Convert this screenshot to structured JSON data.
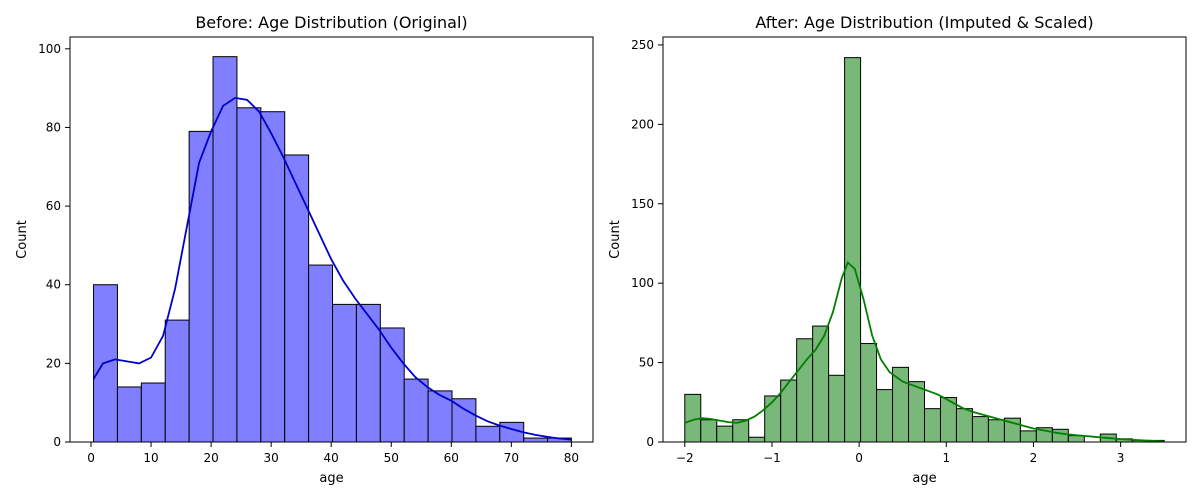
{
  "chart_data": [
    {
      "type": "histogram",
      "title": "Before: Age Distribution (Original)",
      "xlabel": "age",
      "ylabel": "Count",
      "xlim": [
        -3.5,
        83.6
      ],
      "ylim": [
        0,
        103
      ],
      "xticks": [
        0,
        10,
        20,
        30,
        40,
        50,
        60,
        70,
        80
      ],
      "yticks": [
        0,
        20,
        40,
        60,
        80,
        100
      ],
      "bar_color": "#7f7fff",
      "kde_color": "#0000cc",
      "bins": [
        {
          "x0": 0.42,
          "x1": 4.4,
          "count": 40
        },
        {
          "x0": 4.4,
          "x1": 8.38,
          "count": 14
        },
        {
          "x0": 8.38,
          "x1": 12.36,
          "count": 15
        },
        {
          "x0": 12.36,
          "x1": 16.34,
          "count": 31
        },
        {
          "x0": 16.34,
          "x1": 20.32,
          "count": 79
        },
        {
          "x0": 20.32,
          "x1": 24.3,
          "count": 98
        },
        {
          "x0": 24.3,
          "x1": 28.28,
          "count": 85
        },
        {
          "x0": 28.28,
          "x1": 32.26,
          "count": 84
        },
        {
          "x0": 32.26,
          "x1": 36.24,
          "count": 73
        },
        {
          "x0": 36.24,
          "x1": 40.22,
          "count": 45
        },
        {
          "x0": 40.22,
          "x1": 44.2,
          "count": 35
        },
        {
          "x0": 44.2,
          "x1": 48.18,
          "count": 35
        },
        {
          "x0": 48.18,
          "x1": 52.16,
          "count": 29
        },
        {
          "x0": 52.16,
          "x1": 56.14,
          "count": 16
        },
        {
          "x0": 56.14,
          "x1": 60.12,
          "count": 13
        },
        {
          "x0": 60.12,
          "x1": 64.1,
          "count": 11
        },
        {
          "x0": 64.1,
          "x1": 68.08,
          "count": 4
        },
        {
          "x0": 68.08,
          "x1": 72.06,
          "count": 5
        },
        {
          "x0": 72.06,
          "x1": 76.04,
          "count": 1
        },
        {
          "x0": 76.04,
          "x1": 80.0,
          "count": 1
        }
      ],
      "kde": [
        [
          0.4,
          16
        ],
        [
          2,
          20
        ],
        [
          4,
          21
        ],
        [
          6,
          20.5
        ],
        [
          8,
          20
        ],
        [
          10,
          21.5
        ],
        [
          12,
          27
        ],
        [
          14,
          39
        ],
        [
          16,
          55
        ],
        [
          18,
          71
        ],
        [
          20,
          79
        ],
        [
          22,
          85.5
        ],
        [
          24,
          87.5
        ],
        [
          26,
          87
        ],
        [
          28,
          84
        ],
        [
          30,
          78.5
        ],
        [
          32,
          72.5
        ],
        [
          34,
          66
        ],
        [
          36,
          59.5
        ],
        [
          38,
          53
        ],
        [
          40,
          46.5
        ],
        [
          42,
          41
        ],
        [
          44,
          36.5
        ],
        [
          46,
          32.5
        ],
        [
          48,
          28.5
        ],
        [
          50,
          24
        ],
        [
          52,
          20
        ],
        [
          54,
          16.5
        ],
        [
          56,
          14
        ],
        [
          58,
          12
        ],
        [
          60,
          10.5
        ],
        [
          62,
          8.5
        ],
        [
          64,
          6.8
        ],
        [
          66,
          5.3
        ],
        [
          68,
          4.2
        ],
        [
          70,
          3.3
        ],
        [
          72,
          2.5
        ],
        [
          74,
          1.8
        ],
        [
          76,
          1.3
        ],
        [
          78,
          0.9
        ],
        [
          80,
          0.6
        ]
      ]
    },
    {
      "type": "histogram",
      "title": "After: Age Distribution (Imputed & Scaled)",
      "xlabel": "age",
      "ylabel": "Count",
      "xlim": [
        -2.25,
        3.75
      ],
      "ylim": [
        0,
        255
      ],
      "xticks": [
        -2,
        -1,
        0,
        1,
        2,
        3
      ],
      "xtick_labels": [
        "−2",
        "−1",
        "0",
        "1",
        "2",
        "3"
      ],
      "yticks": [
        0,
        50,
        100,
        150,
        200,
        250
      ],
      "bar_color": "#78b878",
      "kde_color": "#008000",
      "bins": [
        {
          "x0": -2.0,
          "x1": -1.8167,
          "count": 30
        },
        {
          "x0": -1.8167,
          "x1": -1.6333,
          "count": 14
        },
        {
          "x0": -1.6333,
          "x1": -1.45,
          "count": 10
        },
        {
          "x0": -1.45,
          "x1": -1.2667,
          "count": 14
        },
        {
          "x0": -1.2667,
          "x1": -1.0833,
          "count": 3
        },
        {
          "x0": -1.0833,
          "x1": -0.9,
          "count": 29
        },
        {
          "x0": -0.9,
          "x1": -0.7167,
          "count": 39
        },
        {
          "x0": -0.7167,
          "x1": -0.5333,
          "count": 65
        },
        {
          "x0": -0.5333,
          "x1": -0.35,
          "count": 73
        },
        {
          "x0": -0.35,
          "x1": -0.1667,
          "count": 42
        },
        {
          "x0": -0.1667,
          "x1": 0.0167,
          "count": 242
        },
        {
          "x0": 0.0167,
          "x1": 0.2,
          "count": 62
        },
        {
          "x0": 0.2,
          "x1": 0.3833,
          "count": 33
        },
        {
          "x0": 0.3833,
          "x1": 0.5667,
          "count": 47
        },
        {
          "x0": 0.5667,
          "x1": 0.75,
          "count": 38
        },
        {
          "x0": 0.75,
          "x1": 0.9333,
          "count": 21
        },
        {
          "x0": 0.9333,
          "x1": 1.1167,
          "count": 28
        },
        {
          "x0": 1.1167,
          "x1": 1.3,
          "count": 21
        },
        {
          "x0": 1.3,
          "x1": 1.4833,
          "count": 16
        },
        {
          "x0": 1.4833,
          "x1": 1.6667,
          "count": 14
        },
        {
          "x0": 1.6667,
          "x1": 1.85,
          "count": 15
        },
        {
          "x0": 1.85,
          "x1": 2.0333,
          "count": 7
        },
        {
          "x0": 2.0333,
          "x1": 2.2167,
          "count": 9
        },
        {
          "x0": 2.2167,
          "x1": 2.4,
          "count": 8
        },
        {
          "x0": 2.4,
          "x1": 2.5833,
          "count": 4
        },
        {
          "x0": 2.5833,
          "x1": 2.7667,
          "count": 0
        },
        {
          "x0": 2.7667,
          "x1": 2.95,
          "count": 5
        },
        {
          "x0": 2.95,
          "x1": 3.1333,
          "count": 2
        },
        {
          "x0": 3.1333,
          "x1": 3.3167,
          "count": 1
        },
        {
          "x0": 3.3167,
          "x1": 3.5,
          "count": 1
        }
      ],
      "kde": [
        [
          -2.0,
          12
        ],
        [
          -1.9,
          14
        ],
        [
          -1.8,
          15
        ],
        [
          -1.7,
          14.5
        ],
        [
          -1.6,
          13.5
        ],
        [
          -1.5,
          12.5
        ],
        [
          -1.4,
          12
        ],
        [
          -1.3,
          13.5
        ],
        [
          -1.2,
          16
        ],
        [
          -1.1,
          20
        ],
        [
          -1.0,
          25
        ],
        [
          -0.9,
          31
        ],
        [
          -0.8,
          38
        ],
        [
          -0.7,
          45
        ],
        [
          -0.6,
          52
        ],
        [
          -0.5,
          58
        ],
        [
          -0.4,
          67
        ],
        [
          -0.3,
          82
        ],
        [
          -0.2,
          103
        ],
        [
          -0.13,
          113
        ],
        [
          -0.05,
          109
        ],
        [
          0.05,
          90
        ],
        [
          0.15,
          67
        ],
        [
          0.25,
          52
        ],
        [
          0.35,
          44
        ],
        [
          0.5,
          38
        ],
        [
          0.6,
          36
        ],
        [
          0.7,
          34
        ],
        [
          0.8,
          32
        ],
        [
          0.9,
          30
        ],
        [
          1.0,
          27
        ],
        [
          1.1,
          24
        ],
        [
          1.2,
          21
        ],
        [
          1.3,
          19
        ],
        [
          1.4,
          17.5
        ],
        [
          1.5,
          16
        ],
        [
          1.6,
          14.5
        ],
        [
          1.7,
          13
        ],
        [
          1.8,
          11.5
        ],
        [
          1.9,
          10
        ],
        [
          2.0,
          8.5
        ],
        [
          2.1,
          7.5
        ],
        [
          2.2,
          6.5
        ],
        [
          2.3,
          5.5
        ],
        [
          2.4,
          4.8
        ],
        [
          2.5,
          4.2
        ],
        [
          2.6,
          3.8
        ],
        [
          2.7,
          3.3
        ],
        [
          2.8,
          2.8
        ],
        [
          2.9,
          2.3
        ],
        [
          3.0,
          1.8
        ],
        [
          3.2,
          1.2
        ],
        [
          3.4,
          0.6
        ],
        [
          3.5,
          0.4
        ]
      ]
    }
  ]
}
